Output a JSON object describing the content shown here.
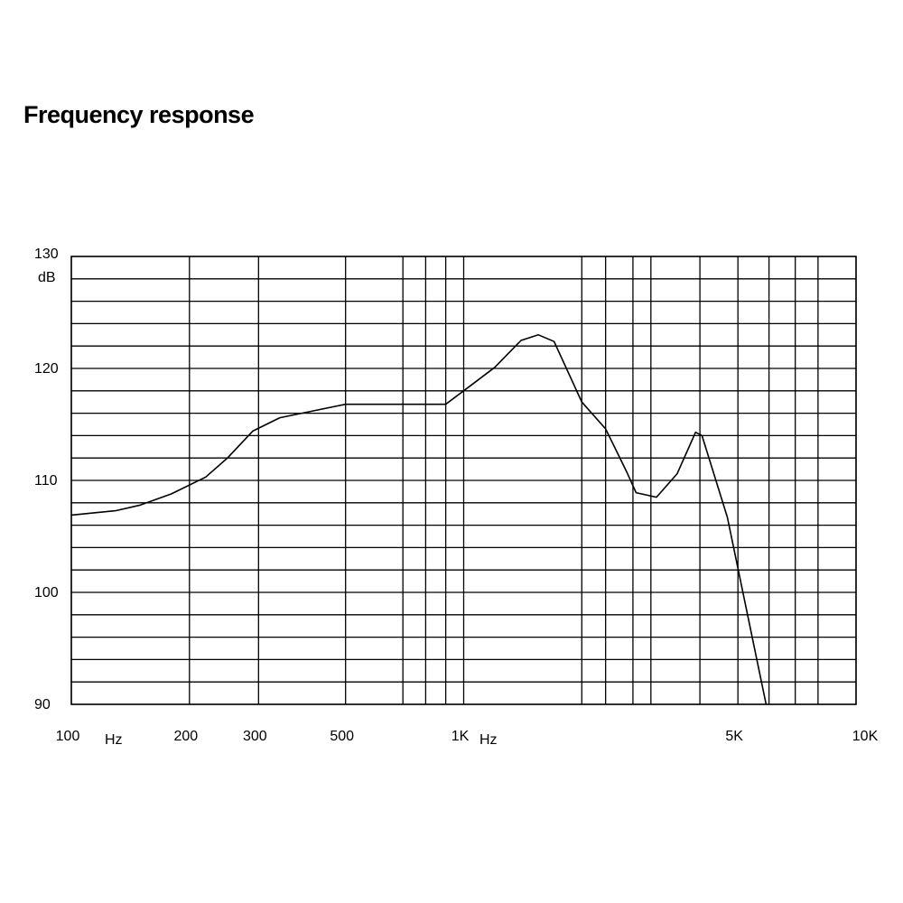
{
  "title": "Frequency response",
  "chart_data": {
    "type": "line",
    "title": "Frequency response",
    "x_scale": "log",
    "xlim": [
      100,
      10000
    ],
    "ylim": [
      90,
      130
    ],
    "y_unit": "dB",
    "x_unit": "Hz",
    "grid": true,
    "y_ticks": [
      {
        "value": 130,
        "label": "130"
      },
      {
        "value": 120,
        "label": "120"
      },
      {
        "value": 110,
        "label": "110"
      },
      {
        "value": 100,
        "label": "100"
      },
      {
        "value": 90,
        "label": "90"
      }
    ],
    "x_ticks": [
      {
        "value": 100,
        "label": "100"
      },
      {
        "value": 200,
        "label": "200"
      },
      {
        "value": 300,
        "label": "300"
      },
      {
        "value": 500,
        "label": "500"
      },
      {
        "value": 1000,
        "label": "1K"
      },
      {
        "value": 5000,
        "label": "5K"
      },
      {
        "value": 10000,
        "label": "10K"
      }
    ],
    "x_gridlines": [
      100,
      200,
      300,
      500,
      700,
      800,
      900,
      1000,
      2000,
      2300,
      2700,
      3000,
      4000,
      5000,
      6000,
      7000,
      8000,
      10000
    ],
    "y_gridlines": [
      90,
      92,
      94,
      96,
      98,
      100,
      102,
      104,
      106,
      108,
      110,
      112,
      114,
      116,
      118,
      120,
      122,
      124,
      126,
      128,
      130
    ],
    "series": [
      {
        "x": [
          100,
          130,
          150,
          180,
          220,
          250,
          290,
          340,
          500,
          900,
          1000,
          1200,
          1400,
          1550,
          1700,
          2000,
          2300,
          2600,
          2750,
          3100,
          3500,
          3900,
          4050,
          4700,
          5900
        ],
        "y": [
          106.9,
          107.3,
          107.8,
          108.8,
          110.3,
          112.0,
          114.4,
          115.6,
          116.8,
          116.8,
          118.0,
          120.1,
          122.5,
          123.0,
          122.4,
          117.0,
          114.6,
          110.8,
          108.9,
          108.5,
          110.6,
          114.3,
          114.0,
          106.7,
          90.0
        ]
      }
    ],
    "color": "#000000"
  }
}
